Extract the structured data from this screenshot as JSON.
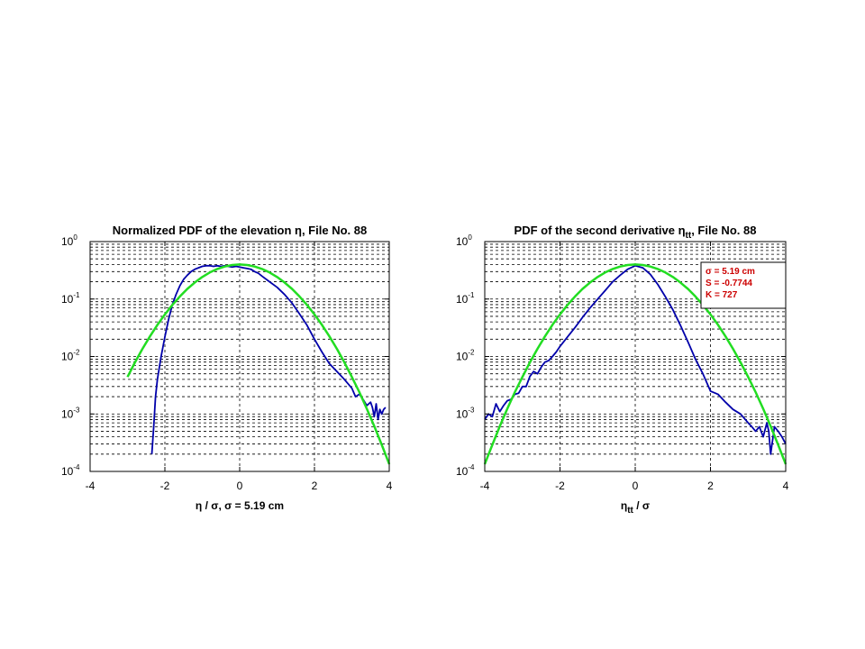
{
  "chart_data": [
    {
      "type": "line",
      "title": "Normalized PDF of the elevation η, File No. 88",
      "xlabel": "η / σ,   σ = 5.19 cm",
      "ylabel": "",
      "xlim": [
        -4,
        4
      ],
      "ylim": [
        0.0001,
        1
      ],
      "yscale": "log",
      "grid": true,
      "xticks": [
        "-4",
        "-2",
        "0",
        "2",
        "4"
      ],
      "yticks": [
        {
          "base": "10",
          "exp": "0"
        },
        {
          "base": "10",
          "exp": "-1"
        },
        {
          "base": "10",
          "exp": "-2"
        },
        {
          "base": "10",
          "exp": "-3"
        },
        {
          "base": "10",
          "exp": "-4"
        }
      ],
      "series": [
        {
          "color": "#0000aa",
          "x": [
            -2.35,
            -2.3,
            -2.25,
            -2.2,
            -2.1,
            -2.0,
            -1.9,
            -1.8,
            -1.7,
            -1.6,
            -1.5,
            -1.4,
            -1.3,
            -1.2,
            -1.1,
            -1.0,
            -0.9,
            -0.8,
            -0.7,
            -0.6,
            -0.5,
            -0.4,
            -0.3,
            -0.2,
            -0.1,
            0.0,
            0.1,
            0.2,
            0.3,
            0.4,
            0.5,
            0.6,
            0.8,
            1.0,
            1.2,
            1.4,
            1.6,
            1.8,
            2.0,
            2.2,
            2.4,
            2.6,
            2.8,
            3.0,
            3.1,
            3.2,
            3.3,
            3.4,
            3.5,
            3.55,
            3.6,
            3.65,
            3.7,
            3.75,
            3.8,
            3.85,
            3.9
          ],
          "y": [
            0.0002,
            0.0006,
            0.002,
            0.004,
            0.01,
            0.022,
            0.045,
            0.08,
            0.12,
            0.17,
            0.22,
            0.26,
            0.3,
            0.33,
            0.35,
            0.37,
            0.38,
            0.38,
            0.37,
            0.38,
            0.37,
            0.38,
            0.37,
            0.36,
            0.37,
            0.36,
            0.35,
            0.34,
            0.33,
            0.3,
            0.28,
            0.25,
            0.2,
            0.16,
            0.12,
            0.085,
            0.055,
            0.035,
            0.02,
            0.012,
            0.0075,
            0.0055,
            0.004,
            0.0028,
            0.002,
            0.0022,
            0.0018,
            0.0014,
            0.0016,
            0.0013,
            0.0009,
            0.0015,
            0.0008,
            0.0012,
            0.001,
            0.0012,
            0.0013
          ]
        },
        {
          "color": "#22dd22",
          "x": [
            -3.0,
            -2.8,
            -2.6,
            -2.4,
            -2.2,
            -2.0,
            -1.8,
            -1.6,
            -1.4,
            -1.2,
            -1.0,
            -0.8,
            -0.6,
            -0.4,
            -0.2,
            0.0,
            0.2,
            0.4,
            0.6,
            0.8,
            1.0,
            1.2,
            1.4,
            1.6,
            1.8,
            2.0,
            2.2,
            2.4,
            2.6,
            2.8,
            3.0,
            3.2,
            3.4,
            3.6,
            3.8,
            4.0
          ],
          "y": [
            0.0044,
            0.0079,
            0.0136,
            0.0224,
            0.0355,
            0.054,
            0.079,
            0.111,
            0.15,
            0.194,
            0.242,
            0.29,
            0.333,
            0.368,
            0.391,
            0.399,
            0.391,
            0.368,
            0.333,
            0.29,
            0.242,
            0.194,
            0.15,
            0.111,
            0.079,
            0.054,
            0.0355,
            0.0224,
            0.0136,
            0.0079,
            0.0044,
            0.0024,
            0.00123,
            0.00061,
            0.00029,
            0.000134
          ]
        }
      ],
      "annotations": []
    },
    {
      "type": "line",
      "title": "PDF of the second derivative ηtt, File No. 88",
      "xlabel": "ηtt / σ",
      "ylabel": "",
      "xlim": [
        -4,
        4
      ],
      "ylim": [
        0.0001,
        1
      ],
      "yscale": "log",
      "grid": true,
      "xticks": [
        "-4",
        "-2",
        "0",
        "2",
        "4"
      ],
      "yticks": [
        {
          "base": "10",
          "exp": "0"
        },
        {
          "base": "10",
          "exp": "-1"
        },
        {
          "base": "10",
          "exp": "-2"
        },
        {
          "base": "10",
          "exp": "-3"
        },
        {
          "base": "10",
          "exp": "-4"
        }
      ],
      "series": [
        {
          "color": "#0000aa",
          "x": [
            -4.0,
            -3.9,
            -3.8,
            -3.7,
            -3.6,
            -3.5,
            -3.4,
            -3.3,
            -3.2,
            -3.1,
            -3.0,
            -2.9,
            -2.8,
            -2.7,
            -2.6,
            -2.5,
            -2.4,
            -2.3,
            -2.2,
            -2.1,
            -2.0,
            -1.8,
            -1.6,
            -1.4,
            -1.2,
            -1.0,
            -0.8,
            -0.6,
            -0.4,
            -0.2,
            0.0,
            0.2,
            0.4,
            0.6,
            0.8,
            1.0,
            1.2,
            1.4,
            1.6,
            1.8,
            2.0,
            2.2,
            2.4,
            2.6,
            2.8,
            3.0,
            3.1,
            3.2,
            3.3,
            3.4,
            3.5,
            3.55,
            3.6,
            3.7,
            3.8,
            3.9,
            4.0
          ],
          "y": [
            0.0008,
            0.001,
            0.0009,
            0.0015,
            0.0011,
            0.0014,
            0.0017,
            0.0018,
            0.0022,
            0.0023,
            0.003,
            0.003,
            0.0045,
            0.0055,
            0.005,
            0.0065,
            0.008,
            0.0085,
            0.01,
            0.012,
            0.015,
            0.022,
            0.032,
            0.048,
            0.07,
            0.1,
            0.14,
            0.2,
            0.26,
            0.33,
            0.38,
            0.35,
            0.27,
            0.18,
            0.11,
            0.065,
            0.035,
            0.018,
            0.009,
            0.005,
            0.0025,
            0.0022,
            0.0016,
            0.0012,
            0.001,
            0.0007,
            0.0006,
            0.0005,
            0.0006,
            0.0004,
            0.0007,
            0.0005,
            0.0002,
            0.0006,
            0.0005,
            0.0004,
            0.0003
          ]
        },
        {
          "color": "#22dd22",
          "x": [
            -4.0,
            -3.8,
            -3.6,
            -3.4,
            -3.2,
            -3.0,
            -2.8,
            -2.6,
            -2.4,
            -2.2,
            -2.0,
            -1.8,
            -1.6,
            -1.4,
            -1.2,
            -1.0,
            -0.8,
            -0.6,
            -0.4,
            -0.2,
            0.0,
            0.2,
            0.4,
            0.6,
            0.8,
            1.0,
            1.2,
            1.4,
            1.6,
            1.8,
            2.0,
            2.2,
            2.4,
            2.6,
            2.8,
            3.0,
            3.2,
            3.4,
            3.6,
            3.8,
            4.0
          ],
          "y": [
            0.000134,
            0.00029,
            0.00061,
            0.00123,
            0.0024,
            0.0044,
            0.0079,
            0.0136,
            0.0224,
            0.0355,
            0.054,
            0.079,
            0.111,
            0.15,
            0.194,
            0.242,
            0.29,
            0.333,
            0.368,
            0.391,
            0.399,
            0.391,
            0.368,
            0.333,
            0.29,
            0.242,
            0.194,
            0.15,
            0.111,
            0.079,
            0.054,
            0.0355,
            0.0224,
            0.0136,
            0.0079,
            0.0044,
            0.0024,
            0.00123,
            0.00061,
            0.00029,
            0.000134
          ]
        }
      ],
      "annotations": [
        "σ = 5.19 cm",
        "S = -0.7744",
        "K = 727"
      ]
    }
  ]
}
